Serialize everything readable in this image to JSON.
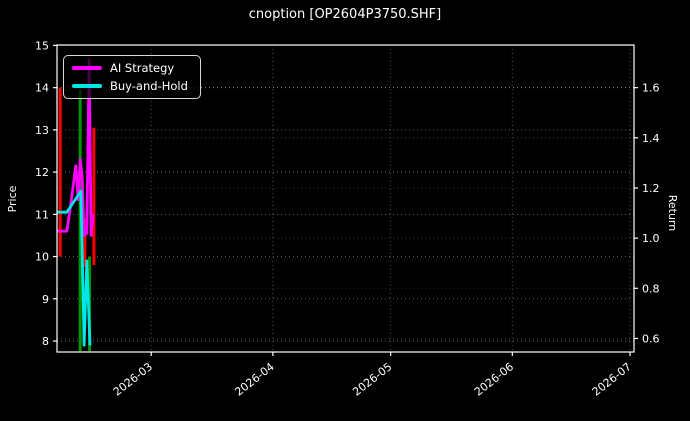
{
  "colors": {
    "background": "#000000",
    "foreground": "#ffffff",
    "grid": "#bbbbbb",
    "ai_strategy_line": "#ff00ff",
    "buy_and_hold_line": "#00e5e5",
    "candle_up": "#009600",
    "candle_down": "#ff0000"
  },
  "chart_data": {
    "type": "mixed-candlestick-line",
    "title": "cnoption [OP2604P3750.SHF]",
    "left_axis": {
      "label": "Price",
      "ticks": [
        8,
        9,
        10,
        11,
        12,
        13,
        14,
        15
      ],
      "range": [
        7.74,
        15.01
      ]
    },
    "right_axis": {
      "label": "Return",
      "tick_labels": [
        "0.6",
        "0.8",
        "1.0",
        "1.2",
        "1.4",
        "1.6"
      ],
      "range": [
        0.546,
        1.77
      ]
    },
    "x_axis": {
      "tick_labels": [
        "2026-03",
        "2026-04",
        "2026-05",
        "2026-06",
        "2026-07"
      ],
      "tick_days": [
        24,
        55,
        85,
        116,
        146
      ],
      "range": [
        0,
        147
      ],
      "label_rotation_deg": -38
    },
    "grid": {
      "on": true,
      "style": "dotted"
    },
    "candles": {
      "up_color": "#009600",
      "down_color": "#ff0000",
      "items": [
        {
          "day": 0.8,
          "high": 14.0,
          "low": 10.0,
          "direction": "down"
        },
        {
          "day": 5.9,
          "high": 13.95,
          "low": 7.76,
          "direction": "up"
        },
        {
          "day": 7.1,
          "high": 10.9,
          "low": 9.75,
          "direction": "down"
        },
        {
          "day": 8.3,
          "high": 10.0,
          "low": 7.76,
          "direction": "up"
        },
        {
          "day": 9.4,
          "high": 13.05,
          "low": 9.8,
          "direction": "down"
        }
      ]
    },
    "series": [
      {
        "name": "AI Strategy",
        "color": "#ff00ff",
        "axis": "left",
        "points": [
          [
            0,
            10.6
          ],
          [
            2.5,
            10.6
          ],
          [
            3.3,
            11.1
          ],
          [
            4.8,
            12.15
          ],
          [
            5.4,
            11.35
          ],
          [
            5.9,
            12.3
          ],
          [
            6.4,
            11.9
          ],
          [
            6.9,
            10.5
          ],
          [
            7.6,
            10.55
          ],
          [
            8.2,
            14.65
          ],
          [
            8.7,
            10.5
          ],
          [
            9.2,
            11.0
          ]
        ]
      },
      {
        "name": "Buy-and-Hold",
        "color": "#00e5e5",
        "axis": "left",
        "points": [
          [
            0,
            11.05
          ],
          [
            2.5,
            11.05
          ],
          [
            6.1,
            11.55
          ],
          [
            6.9,
            7.9
          ],
          [
            7.6,
            9.9
          ],
          [
            8.4,
            7.9
          ]
        ]
      }
    ],
    "legend": {
      "position": "upper-left",
      "entries": [
        {
          "label": "AI Strategy",
          "color": "#ff00ff"
        },
        {
          "label": "Buy-and-Hold",
          "color": "#00e5e5"
        }
      ]
    }
  }
}
